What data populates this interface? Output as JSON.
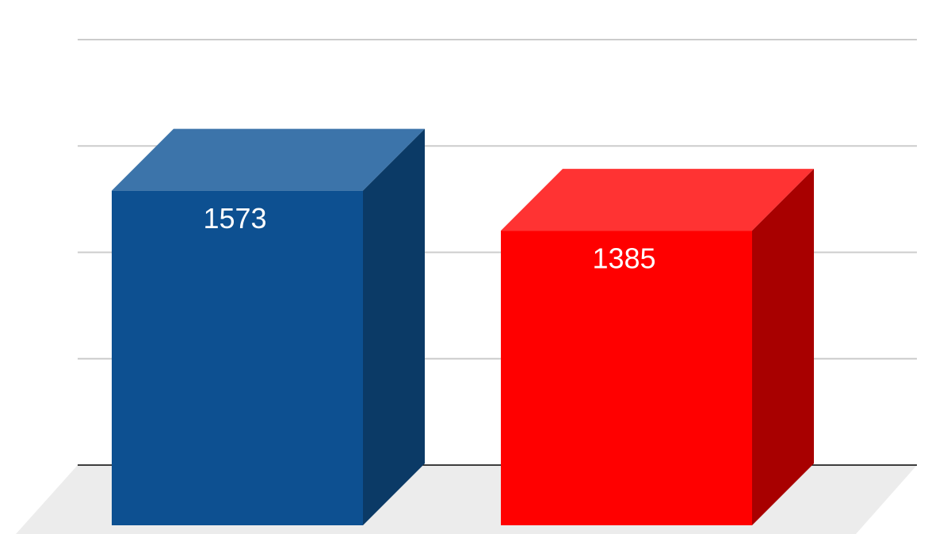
{
  "chart_data": {
    "type": "bar3d",
    "values": [
      1573,
      1385
    ],
    "colors": [
      "#0d5091",
      "#ff0000"
    ],
    "side_colors": [
      "#0b3a66",
      "#a80000"
    ],
    "top_colors": [
      "#3c74aa",
      "#ff3333"
    ],
    "ylim": [
      0,
      2000
    ],
    "yticks": [
      0,
      500,
      1000,
      1500,
      2000
    ],
    "grid": true
  }
}
